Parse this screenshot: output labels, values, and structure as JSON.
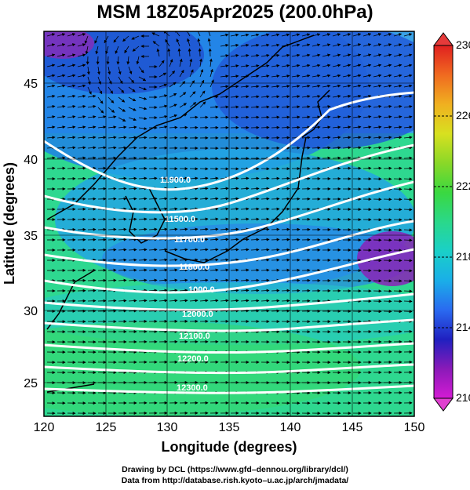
{
  "title": "MSM 18Z05Apr2025 (200.0hPa)",
  "x_axis": {
    "label": "Longitude (degrees)",
    "ticks": [
      "120",
      "125",
      "130",
      "135",
      "140",
      "145",
      "150"
    ]
  },
  "y_axis": {
    "label": "Latitude  (degrees)",
    "ticks": [
      "25",
      "30",
      "35",
      "40",
      "45"
    ]
  },
  "colorbar": {
    "ticks": [
      "230",
      "226",
      "222",
      "218",
      "214",
      "210"
    ],
    "colors": [
      "#d41bd4",
      "#8a1ab8",
      "#2020c0",
      "#2a6af0",
      "#1aaee8",
      "#1ad0c8",
      "#2ad88a",
      "#3ad840",
      "#8ad828",
      "#d8e020",
      "#f0b020",
      "#f06a20",
      "#e02020"
    ]
  },
  "contour_labels": [
    "11900.0",
    "11500.0",
    "11700.0",
    "11800.0",
    "1000.0",
    "12000.0",
    "12100.0",
    "12200.0",
    "12300.0"
  ],
  "credits": {
    "line1": "Drawing by DCL (https://www.gfd–dennou.org/library/dcl/)",
    "line2": "Data from http://database.rish.kyoto–u.ac.jp/arch/jmadata/"
  }
}
